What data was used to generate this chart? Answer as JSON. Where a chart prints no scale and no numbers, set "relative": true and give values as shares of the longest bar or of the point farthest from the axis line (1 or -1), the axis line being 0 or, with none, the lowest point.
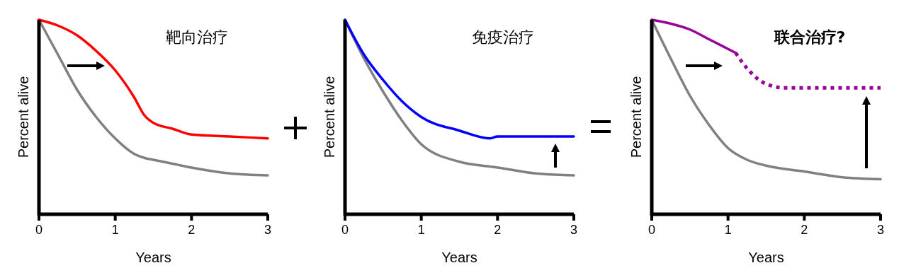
{
  "chart_data": [
    {
      "type": "line",
      "title": "靶向治疗",
      "xlabel": "Years",
      "ylabel": "Percent alive",
      "relative": true,
      "xlim": [
        0,
        3
      ],
      "xticks": [
        0,
        1,
        2,
        3
      ],
      "x": [
        0,
        0.25,
        0.5,
        0.75,
        1,
        1.25,
        1.38,
        1.5,
        1.75,
        2,
        2.5,
        3
      ],
      "series": [
        {
          "color": "#808080",
          "values": [
            1,
            0.82,
            0.64,
            0.5,
            0.39,
            0.31,
            0.29,
            0.28,
            0.26,
            0.24,
            0.21,
            0.2
          ]
        },
        {
          "color": "#ff0000",
          "values": [
            1,
            0.97,
            0.92,
            0.84,
            0.74,
            0.6,
            0.51,
            0.47,
            0.44,
            0.41,
            0.4,
            0.39
          ]
        }
      ]
    },
    {
      "type": "line",
      "title": "免疫治疗",
      "xlabel": "Years",
      "ylabel": "Percent alive",
      "relative": true,
      "xlim": [
        0,
        3
      ],
      "xticks": [
        0,
        1,
        2,
        3
      ],
      "x": [
        0,
        0.25,
        0.5,
        0.75,
        1,
        1.5,
        1.9,
        2,
        2.5,
        3
      ],
      "series": [
        {
          "color": "#808080",
          "values": [
            1,
            0.8,
            0.63,
            0.48,
            0.36,
            0.27,
            0.245,
            0.24,
            0.21,
            0.2
          ]
        },
        {
          "color": "#0000ff",
          "values": [
            1,
            0.82,
            0.69,
            0.58,
            0.5,
            0.43,
            0.39,
            0.4,
            0.4,
            0.4
          ]
        }
      ]
    },
    {
      "type": "line",
      "title": "联合治疗?",
      "xlabel": "Years",
      "ylabel": "Percent alive",
      "relative": true,
      "xlim": [
        0,
        3
      ],
      "xticks": [
        0,
        1,
        2,
        3
      ],
      "series": [
        {
          "color": "#808080",
          "x": [
            0,
            0.25,
            0.5,
            0.75,
            1,
            1.25,
            1.5,
            2,
            2.5,
            3
          ],
          "values": [
            1,
            0.8,
            0.61,
            0.46,
            0.34,
            0.28,
            0.25,
            0.22,
            0.19,
            0.18
          ]
        },
        {
          "color": "#990099",
          "x": [
            0,
            0.25,
            0.5,
            0.75,
            1,
            1.1
          ],
          "values": [
            1,
            0.98,
            0.95,
            0.9,
            0.85,
            0.83
          ]
        },
        {
          "color": "#990099",
          "line_style": "dotted",
          "x": [
            1.1,
            1.25,
            1.5,
            1.75,
            2,
            2.5,
            3
          ],
          "values": [
            0.83,
            0.75,
            0.67,
            0.65,
            0.65,
            0.65,
            0.65
          ]
        }
      ]
    }
  ]
}
